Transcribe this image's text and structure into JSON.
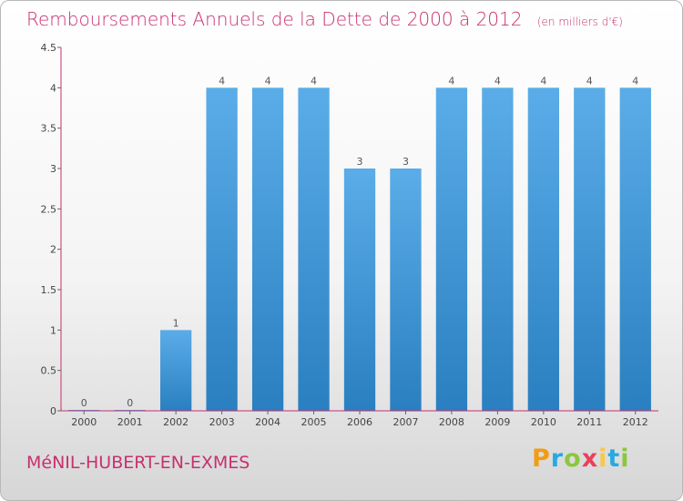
{
  "chart_data": {
    "type": "bar",
    "title": "Remboursements Annuels de la Dette de 2000 à 2012",
    "unit": "(en milliers d'€)",
    "categories": [
      "2000",
      "2001",
      "2002",
      "2003",
      "2004",
      "2005",
      "2006",
      "2007",
      "2008",
      "2009",
      "2010",
      "2011",
      "2012"
    ],
    "values": [
      0,
      0,
      1,
      4,
      4,
      4,
      3,
      3,
      4,
      4,
      4,
      4,
      4
    ],
    "data_labels": [
      "0",
      "0",
      "1",
      "4",
      "4",
      "4",
      "3",
      "3",
      "4",
      "4",
      "4",
      "4",
      "4"
    ],
    "y_ticks": [
      0,
      0.5,
      1,
      1.5,
      2,
      2.5,
      3,
      3.5,
      4,
      4.5
    ],
    "y_tick_labels": [
      "0",
      "0.5",
      "1",
      "1.5",
      "2",
      "2.5",
      "3",
      "3.5",
      "4",
      "4.5"
    ],
    "ylim": [
      0,
      4.5
    ],
    "xlabel": "",
    "ylabel": "",
    "grid": false,
    "bar_color": "#3d96d8",
    "axis_color": "#c8306e"
  },
  "commune": "MéNIL-HUBERT-EN-EXMES",
  "brand": {
    "letters": [
      "P",
      "r",
      "o",
      "x",
      "i",
      "t",
      "i"
    ],
    "colors": [
      "#f39c12",
      "#27a9e1",
      "#8dc63f",
      "#e8415a",
      "#f7c948",
      "#27a9e1",
      "#8dc63f"
    ]
  }
}
